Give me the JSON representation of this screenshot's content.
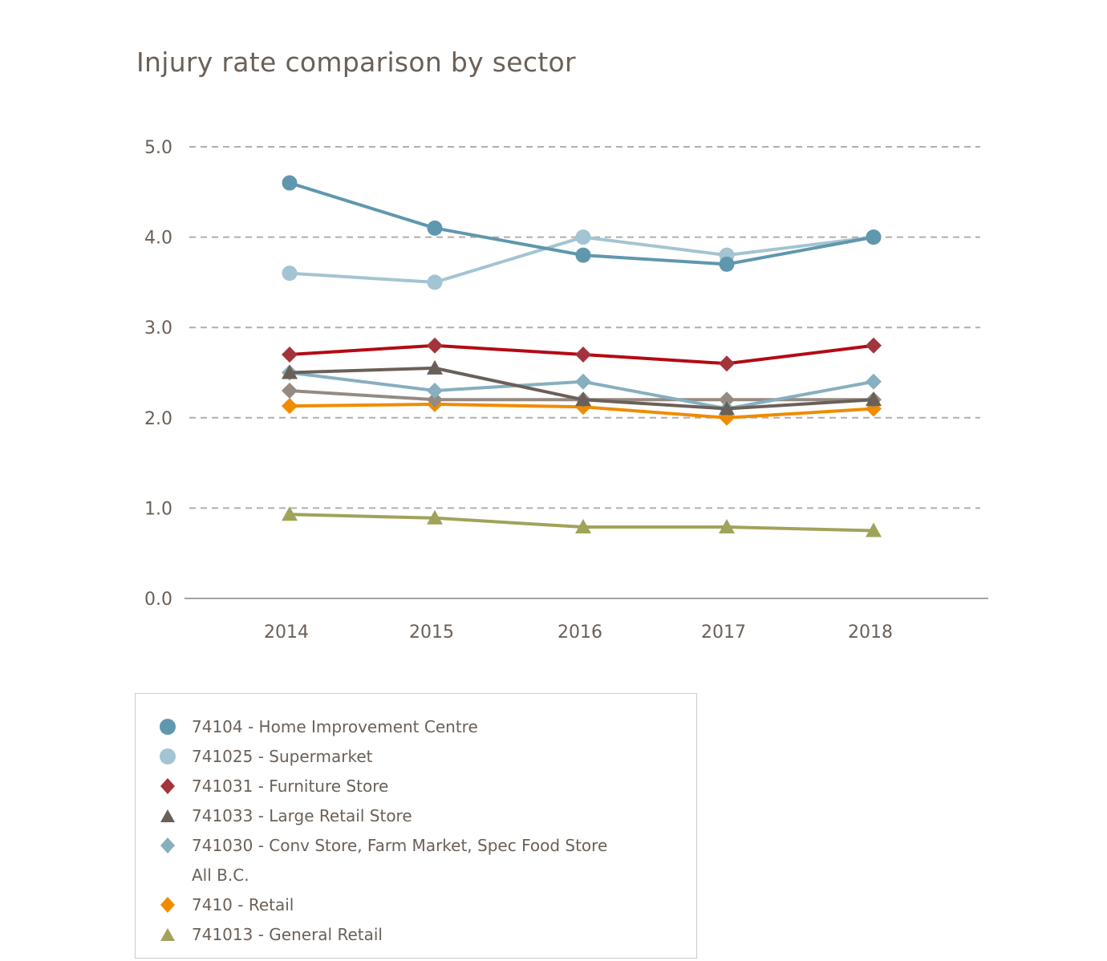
{
  "chart_data": {
    "type": "line",
    "title": "Injury rate comparison by sector",
    "xlabel": "",
    "ylabel": "",
    "x": [
      "2014",
      "2015",
      "2016",
      "2017",
      "2018"
    ],
    "ylim": [
      0,
      5
    ],
    "yticks": [
      "0.0",
      "1.0",
      "2.0",
      "3.0",
      "4.0",
      "5.0"
    ],
    "grid": true,
    "legend_position": "bottom-left",
    "series": [
      {
        "name": "74104 - Home Improvement Centre",
        "marker": "circle",
        "color": "#5f97ae",
        "line_color": "#5f97ae",
        "values": [
          4.6,
          4.1,
          3.8,
          3.7,
          4.0
        ]
      },
      {
        "name": "741025 - Supermarket",
        "marker": "circle",
        "color": "#a3c4d2",
        "line_color": "#a3c4d2",
        "values": [
          3.6,
          3.5,
          4.0,
          3.8,
          4.0
        ]
      },
      {
        "name": "741031 - Furniture Store",
        "marker": "diamond",
        "color": "#a3343c",
        "line_color": "#b30a14",
        "values": [
          2.7,
          2.8,
          2.7,
          2.6,
          2.8
        ]
      },
      {
        "name": "741033 - Large Retail Store",
        "marker": "triangle",
        "color": "#6b6058",
        "line_color": "#6b6058",
        "values": [
          2.5,
          2.55,
          2.2,
          2.1,
          2.2
        ]
      },
      {
        "name": "741030 - Conv Store, Farm Market, Spec Food Store",
        "marker": "diamond",
        "color": "#86afc0",
        "line_color": "#86afc0",
        "values": [
          2.5,
          2.3,
          2.4,
          2.1,
          2.4
        ]
      },
      {
        "name": "All B.C.",
        "marker": "diamond",
        "color": "#958a82",
        "line_color": "#958a82",
        "values": [
          2.3,
          2.2,
          2.2,
          2.2,
          2.2
        ],
        "legend_marker": false
      },
      {
        "name": "7410 - Retail",
        "marker": "diamond",
        "color": "#ef8c00",
        "line_color": "#ef8c00",
        "values": [
          2.13,
          2.15,
          2.12,
          2.0,
          2.1
        ]
      },
      {
        "name": "741013 - General Retail",
        "marker": "triangle",
        "color": "#a0a35a",
        "line_color": "#a0a35a",
        "values": [
          0.93,
          0.89,
          0.79,
          0.79,
          0.75
        ]
      }
    ]
  }
}
